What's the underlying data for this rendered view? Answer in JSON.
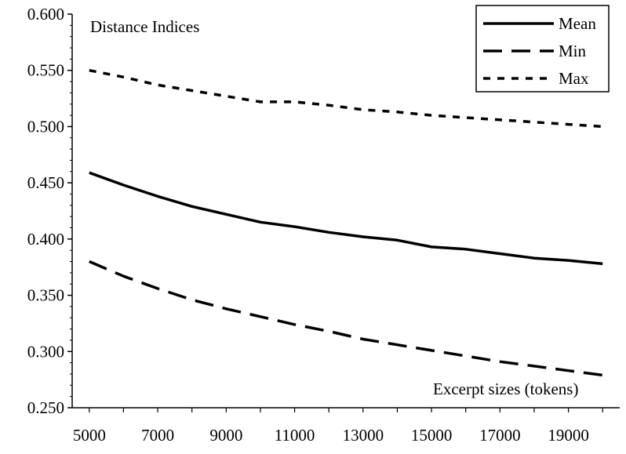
{
  "chart_data": {
    "type": "line",
    "x": [
      5000,
      6000,
      7000,
      8000,
      9000,
      10000,
      11000,
      12000,
      13000,
      14000,
      15000,
      16000,
      17000,
      18000,
      19000,
      20000
    ],
    "x_tick_labels": [
      "5000",
      "7000",
      "9000",
      "11000",
      "13000",
      "15000",
      "17000",
      "19000"
    ],
    "y_tick_labels": [
      "0.250",
      "0.300",
      "0.350",
      "0.400",
      "0.450",
      "0.500",
      "0.550",
      "0.600"
    ],
    "xlim": [
      4500,
      20500
    ],
    "ylim": [
      0.25,
      0.6
    ],
    "ylabel": "Distance Indices",
    "xlabel": "Excerpt sizes (tokens)",
    "legend_position": "top-right",
    "series": [
      {
        "name": "Mean",
        "style": "solid",
        "values": [
          0.459,
          0.448,
          0.438,
          0.429,
          0.422,
          0.415,
          0.411,
          0.406,
          0.402,
          0.399,
          0.393,
          0.391,
          0.387,
          0.383,
          0.381,
          0.378
        ]
      },
      {
        "name": "Min",
        "style": "long-dash",
        "values": [
          0.38,
          0.367,
          0.356,
          0.346,
          0.338,
          0.331,
          0.324,
          0.318,
          0.311,
          0.306,
          0.301,
          0.296,
          0.291,
          0.287,
          0.283,
          0.279
        ]
      },
      {
        "name": "Max",
        "style": "short-dash",
        "values": [
          0.55,
          0.544,
          0.537,
          0.532,
          0.527,
          0.522,
          0.522,
          0.519,
          0.515,
          0.513,
          0.51,
          0.508,
          0.506,
          0.504,
          0.502,
          0.5
        ]
      }
    ],
    "colors": {
      "line": "#000000",
      "background": "#ffffff"
    }
  }
}
